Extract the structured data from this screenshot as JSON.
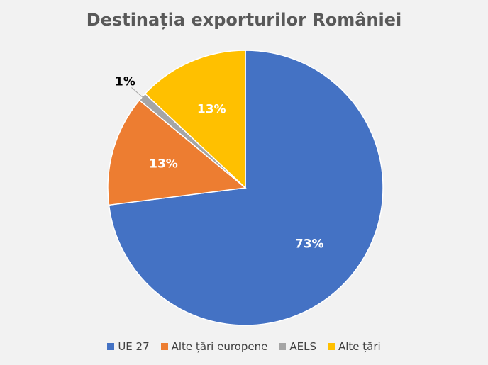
{
  "chart_data": {
    "type": "pie",
    "title": "Destinația exporturilor României",
    "categories": [
      "UE 27",
      "Alte țări europene",
      "AELS",
      "Alte țări"
    ],
    "values": [
      73,
      13,
      1,
      13
    ],
    "data_labels": [
      "73%",
      "13%",
      "1%",
      "13%"
    ],
    "colors": [
      "#4472c4",
      "#ed7d31",
      "#a5a5a5",
      "#ffc000"
    ],
    "legend_position": "bottom",
    "start_angle": "12 o'clock, clockwise"
  }
}
